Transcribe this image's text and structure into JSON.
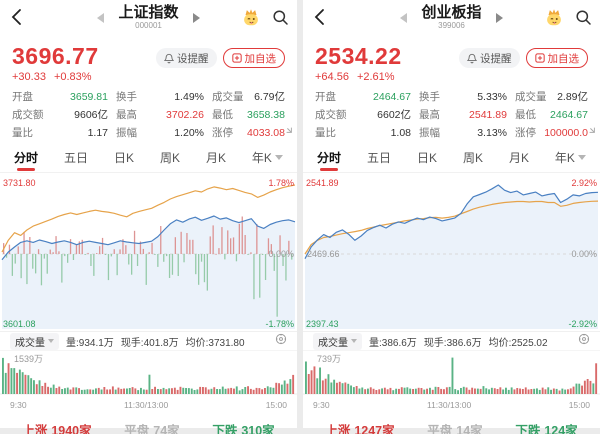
{
  "colors": {
    "up": "#e03a3a",
    "down": "#2ba05e",
    "flat": "#333333",
    "price_line": "#4a80c2",
    "avg_line": "#e6a34a",
    "fill": "#ebf2fa",
    "bar_up": "#dd9494",
    "bar_down": "#96cba9",
    "vol_up": "#d96a6a",
    "vol_down": "#5ab385",
    "dash": "#d8d8d8",
    "axis_text": "#999999"
  },
  "panels": [
    {
      "nav": {
        "title": "上证指数",
        "code": "000001"
      },
      "quote": {
        "price": "3696.77",
        "change": "+30.33",
        "change_pct": "+0.83%"
      },
      "actions": {
        "alert": "设提醒",
        "watch": "加自选"
      },
      "stats": [
        {
          "label": "开盘",
          "value": "3659.81",
          "c": "down"
        },
        {
          "label": "换手",
          "value": "1.49%",
          "c": "flat"
        },
        {
          "label": "成交量",
          "value": "6.79亿",
          "c": "flat"
        },
        {
          "label": "成交额",
          "value": "9606亿",
          "c": "flat"
        },
        {
          "label": "最高",
          "value": "3702.26",
          "c": "up"
        },
        {
          "label": "最低",
          "value": "3658.38",
          "c": "down"
        },
        {
          "label": "量比",
          "value": "1.17",
          "c": "flat"
        },
        {
          "label": "振幅",
          "value": "1.20%",
          "c": "flat"
        },
        {
          "label": "涨停",
          "value": "4033.08",
          "c": "up"
        }
      ],
      "tabs": [
        {
          "label": "分时",
          "active": true
        },
        {
          "label": "五日",
          "active": false
        },
        {
          "label": "日K",
          "active": false
        },
        {
          "label": "周K",
          "active": false
        },
        {
          "label": "月K",
          "active": false
        },
        {
          "label": "年K",
          "active": false,
          "dropdown": true
        }
      ],
      "chart_data": {
        "type": "line",
        "ylim_pct": 1.78,
        "labels": {
          "top_value": "3731.80",
          "top_pct": "1.78%",
          "mid_value": "",
          "mid_pct": "0.00%",
          "bottom_value": "3601.08",
          "bottom_pct": "-1.78%"
        },
        "x_ticks": [
          "9:30",
          "11:30/13:00",
          "15:00"
        ],
        "has_mid_bars": true,
        "price_pct": [
          -0.15,
          0.05,
          0.18,
          0.3,
          0.34,
          0.3,
          0.36,
          0.32,
          0.27,
          0.31,
          0.34,
          0.3,
          0.24,
          0.3,
          0.33,
          0.3,
          0.27,
          0.24,
          0.29,
          0.34,
          0.31,
          0.29,
          0.27,
          0.3,
          0.33,
          0.45,
          0.62,
          0.78,
          0.88,
          0.82,
          0.9,
          0.95,
          0.87,
          0.92,
          0.98,
          0.9,
          0.93,
          0.86,
          0.81,
          0.86,
          0.91,
          0.72,
          0.66,
          0.76,
          0.82,
          0.86,
          0.88,
          0.83
        ],
        "avg_pct": [
          0.05,
          0.35,
          0.55,
          0.48,
          0.62,
          0.72,
          0.78,
          0.84,
          0.9,
          0.97,
          1.02,
          1.06,
          1.02,
          1.06,
          1.1,
          1.13,
          1.1,
          1.08,
          1.05,
          1.0,
          0.96,
          1.05,
          1.1,
          1.14,
          1.18,
          1.26,
          1.33,
          1.42,
          1.48,
          1.53,
          1.58,
          1.63,
          1.6,
          1.68,
          1.73,
          1.7,
          1.66,
          1.69,
          1.64,
          1.59,
          1.55,
          1.46,
          1.52,
          1.6,
          1.66,
          1.71,
          1.75,
          1.78
        ],
        "volume_peak_label": "1539万"
      },
      "volume_header": {
        "name": "成交量",
        "vol": "量:934.1万",
        "hand": "现手:401.8万",
        "avg": "均价:3731.80"
      },
      "breadth": {
        "up_label": "上涨",
        "up_count": "1940家",
        "flat_label": "平盘",
        "flat_count": "74家",
        "down_label": "下跌",
        "down_count": "310家"
      }
    },
    {
      "nav": {
        "title": "创业板指",
        "code": "399006"
      },
      "quote": {
        "price": "2534.22",
        "change": "+64.56",
        "change_pct": "+2.61%"
      },
      "actions": {
        "alert": "设提醒",
        "watch": "加自选"
      },
      "stats": [
        {
          "label": "开盘",
          "value": "2464.67",
          "c": "down"
        },
        {
          "label": "换手",
          "value": "5.33%",
          "c": "flat"
        },
        {
          "label": "成交量",
          "value": "2.89亿",
          "c": "flat"
        },
        {
          "label": "成交额",
          "value": "6602亿",
          "c": "flat"
        },
        {
          "label": "最高",
          "value": "2541.89",
          "c": "up"
        },
        {
          "label": "最低",
          "value": "2464.67",
          "c": "down"
        },
        {
          "label": "量比",
          "value": "1.08",
          "c": "flat"
        },
        {
          "label": "振幅",
          "value": "3.13%",
          "c": "flat"
        },
        {
          "label": "涨停",
          "value": "100000.0",
          "c": "up"
        }
      ],
      "tabs": [
        {
          "label": "分时",
          "active": true
        },
        {
          "label": "五日",
          "active": false
        },
        {
          "label": "日K",
          "active": false
        },
        {
          "label": "周K",
          "active": false
        },
        {
          "label": "月K",
          "active": false
        },
        {
          "label": "年K",
          "active": false,
          "dropdown": true
        }
      ],
      "chart_data": {
        "type": "line",
        "ylim_pct": 2.92,
        "labels": {
          "top_value": "2541.89",
          "top_pct": "2.92%",
          "mid_value": "2469.66",
          "mid_pct": "0.00%",
          "bottom_value": "2397.43",
          "bottom_pct": "-2.92%"
        },
        "x_ticks": [
          "9:30",
          "11:30/13:00",
          "15:00"
        ],
        "has_mid_bars": false,
        "price_pct": [
          -0.2,
          0.3,
          0.6,
          0.82,
          0.7,
          0.92,
          1.02,
          0.84,
          0.58,
          0.76,
          1.0,
          1.12,
          1.22,
          1.1,
          1.26,
          1.36,
          1.3,
          1.42,
          1.52,
          1.45,
          1.56,
          1.5,
          1.4,
          1.46,
          1.52,
          1.72,
          2.12,
          2.42,
          2.52,
          2.62,
          2.76,
          2.92,
          2.7,
          2.6,
          2.66,
          2.5,
          2.56,
          2.62,
          2.46,
          2.52,
          2.56,
          2.18,
          2.32,
          2.5,
          2.46,
          2.56,
          2.6,
          2.61
        ],
        "avg_pct": [
          0.0,
          0.4,
          0.58,
          0.7,
          0.74,
          0.8,
          0.86,
          0.9,
          0.95,
          1.0,
          1.08,
          1.14,
          1.2,
          1.25,
          1.3,
          1.35,
          1.4,
          1.44,
          1.48,
          1.5,
          1.54,
          1.55,
          1.52,
          1.55,
          1.6,
          1.7,
          1.8,
          1.9,
          1.98,
          2.04,
          2.1,
          2.14,
          2.18,
          2.2,
          2.22,
          2.22,
          2.2,
          2.22,
          2.22,
          2.18,
          2.18,
          2.02,
          2.06,
          2.14,
          2.18,
          2.21,
          2.23,
          2.24
        ],
        "volume_peak_label": "739万"
      },
      "volume_header": {
        "name": "成交量",
        "vol": "量:386.6万",
        "hand": "现手:386.6万",
        "avg": "均价:2525.02"
      },
      "breadth": {
        "up_label": "上涨",
        "up_count": "1247家",
        "flat_label": "平盘",
        "flat_count": "14家",
        "down_label": "下跌",
        "down_count": "124家"
      }
    }
  ]
}
